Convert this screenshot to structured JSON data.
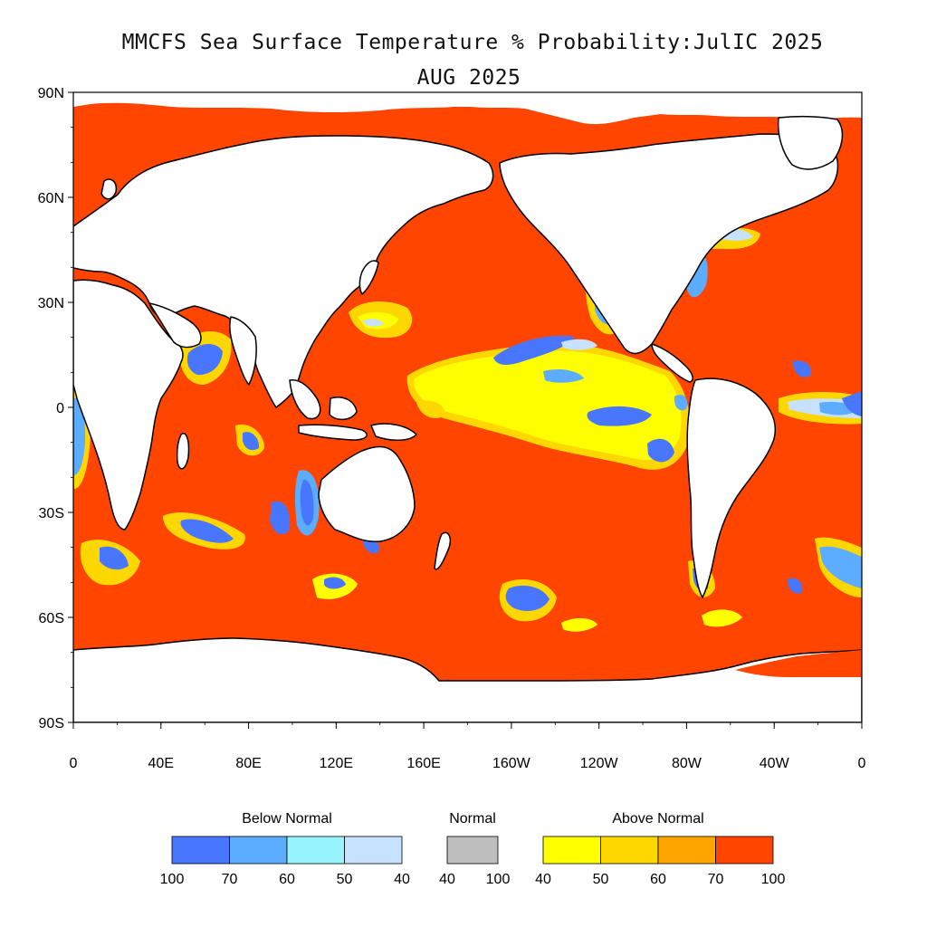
{
  "title": {
    "line1": "MMCFS Sea Surface Temperature % Probability:JulIC 2025",
    "line2": "AUG 2025"
  },
  "map": {
    "lat_labels": [
      "90N",
      "60N",
      "30N",
      "0",
      "30S",
      "60S",
      "90S"
    ],
    "lon_labels": [
      "0",
      "40E",
      "80E",
      "120E",
      "160E",
      "160W",
      "120W",
      "80W",
      "40W",
      "0"
    ],
    "land_color": "#ffffff",
    "coast_color": "#000000"
  },
  "legend": {
    "below": {
      "label": "Below Normal",
      "colors": [
        "#4876ff",
        "#5cacff",
        "#98f5ff",
        "#c6e2ff"
      ],
      "ticks": [
        "100",
        "70",
        "60",
        "50",
        "40"
      ]
    },
    "normal": {
      "label": "Normal",
      "colors": [
        "#bebebe"
      ],
      "ticks": [
        "40",
        "100"
      ]
    },
    "above": {
      "label": "Above Normal",
      "colors": [
        "#ffff00",
        "#ffd700",
        "#ffa500",
        "#ff4500"
      ],
      "ticks": [
        "40",
        "50",
        "60",
        "70",
        "100"
      ]
    }
  }
}
